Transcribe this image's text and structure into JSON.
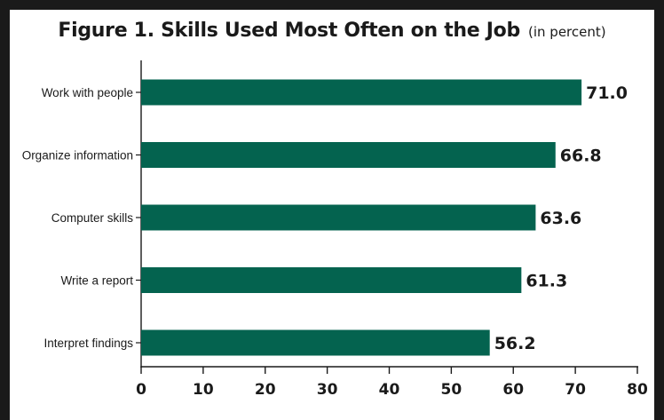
{
  "chart_data": {
    "type": "bar",
    "orientation": "horizontal",
    "title": "Figure 1. Skills Used Most Often on the Job",
    "subtitle": "(in percent)",
    "categories": [
      "Work with people",
      "Organize information",
      "Computer skills",
      "Write a report",
      "Interpret findings"
    ],
    "values": [
      71.0,
      66.8,
      63.6,
      61.3,
      56.2
    ],
    "value_labels": [
      "71.0",
      "66.8",
      "63.6",
      "61.3",
      "56.2"
    ],
    "xlim": [
      0,
      80
    ],
    "xticks": [
      "0",
      "10",
      "20",
      "30",
      "40",
      "50",
      "60",
      "70",
      "80"
    ],
    "xlabel": "",
    "ylabel": "",
    "grid": false,
    "bar_color": "#04634f"
  }
}
